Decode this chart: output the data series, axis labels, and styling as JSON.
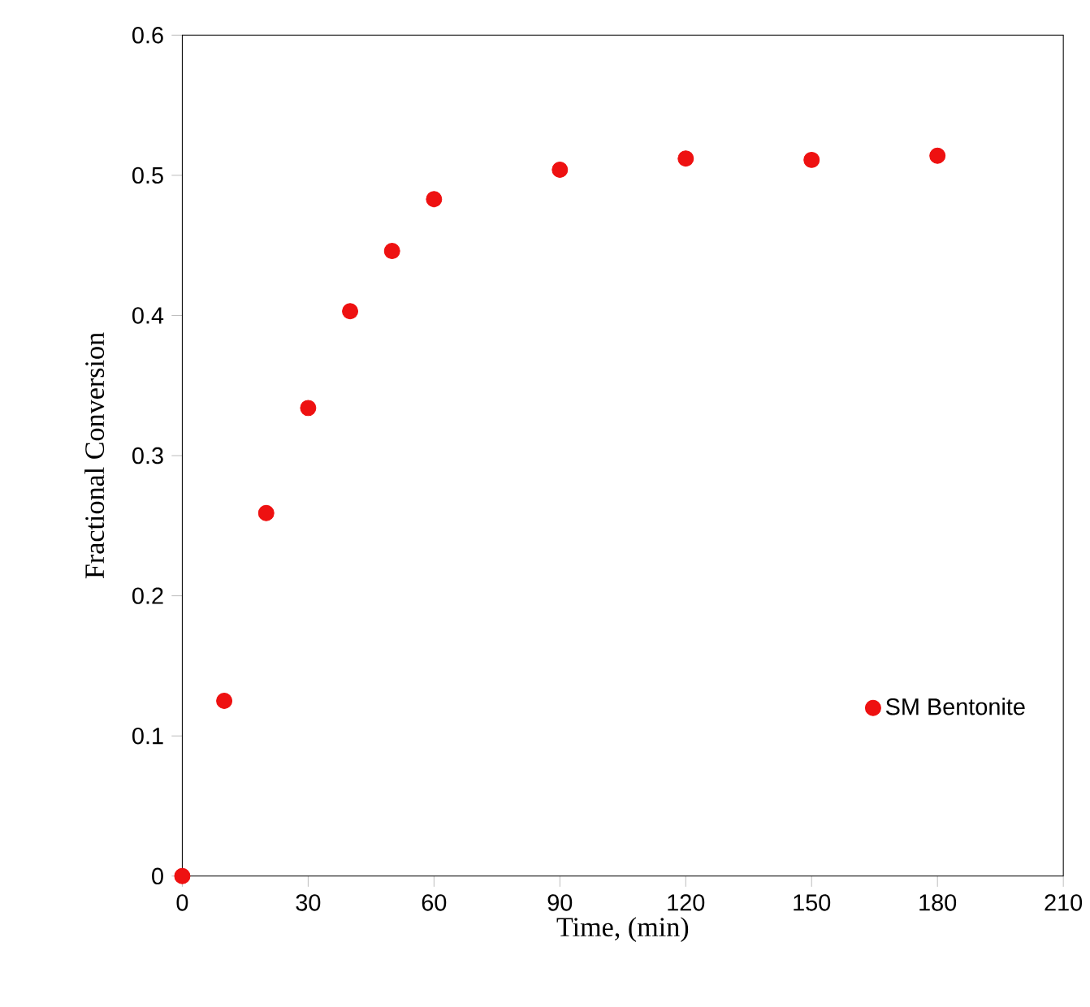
{
  "chart_data": {
    "type": "scatter",
    "xlabel": "Time, (min)",
    "ylabel": "Fractional Conversion",
    "x": [
      0,
      10,
      20,
      30,
      40,
      50,
      60,
      90,
      120,
      150,
      180
    ],
    "series": [
      {
        "name": "SM Bentonite",
        "color": "#ee1111",
        "values": [
          0,
          0.125,
          0.259,
          0.334,
          0.403,
          0.446,
          0.483,
          0.504,
          0.512,
          0.511,
          0.514
        ]
      }
    ],
    "xlim": [
      0,
      210
    ],
    "ylim": [
      0,
      0.6
    ],
    "xticks": [
      0,
      30,
      60,
      90,
      120,
      150,
      180,
      210
    ],
    "yticks": [
      0,
      0.1,
      0.2,
      0.3,
      0.4,
      0.5,
      0.6
    ],
    "marker": "circle",
    "legend": "bottom right",
    "grid": false
  }
}
